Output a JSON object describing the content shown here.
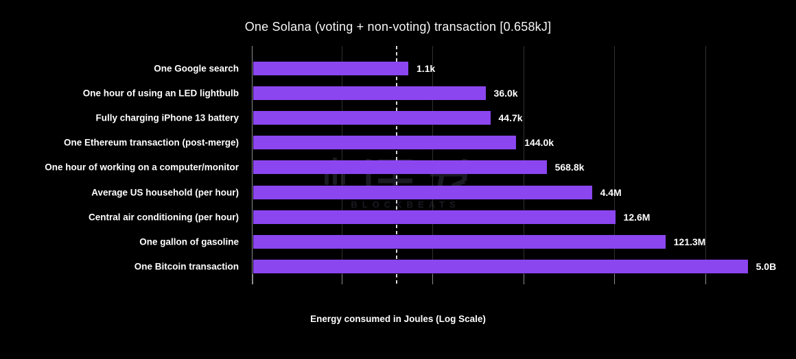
{
  "watermark": "BLOCKBEATS",
  "chart_data": {
    "type": "bar",
    "orientation": "horizontal",
    "title": "One Solana (voting + non-voting) transaction [0.658kJ]",
    "xlabel": "Energy consumed in Joules (Log Scale)",
    "x_scale": "log10",
    "x_range_joules": [
      1,
      20000000000
    ],
    "grid": true,
    "background_color": "#000000",
    "bar_color": "#8B46F0",
    "reference_line": {
      "name": "One Solana transaction energy",
      "value_joules": 658,
      "style": "dashed"
    },
    "categories": [
      "One Google search",
      "One hour of using an LED lightbulb",
      "Fully charging iPhone 13 battery",
      "One Ethereum transaction (post-merge)",
      "One hour of working on a computer/monitor",
      "Average US household (per hour)",
      "Central air conditioning (per hour)",
      "One gallon of gasoline",
      "One Bitcoin transaction"
    ],
    "values_joules": [
      1100,
      36000,
      44700,
      144000,
      568800,
      4400000,
      12600000,
      121300000,
      5000000000
    ],
    "value_labels": [
      "1.1k",
      "36.0k",
      "44.7k",
      "144.0k",
      "568.8k",
      "4.4M",
      "12.6M",
      "121.3M",
      "5.0B"
    ]
  }
}
